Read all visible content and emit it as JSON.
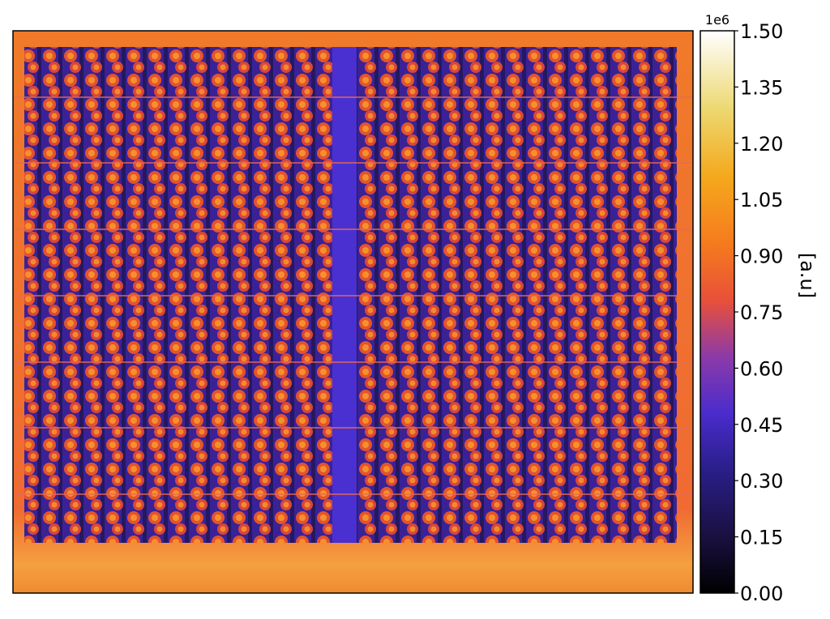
{
  "chart_data": {
    "type": "image",
    "colorbar": {
      "label": "[a.u]",
      "offset_text": "1e6",
      "lim": [
        0,
        1500000
      ],
      "ticks": [
        {
          "value": 0,
          "label": "0.00"
        },
        {
          "value": 150000,
          "label": "0.15"
        },
        {
          "value": 300000,
          "label": "0.30"
        },
        {
          "value": 450000,
          "label": "0.45"
        },
        {
          "value": 600000,
          "label": "0.60"
        },
        {
          "value": 750000,
          "label": "0.75"
        },
        {
          "value": 900000,
          "label": "0.90"
        },
        {
          "value": 1050000,
          "label": "1.05"
        },
        {
          "value": 1200000,
          "label": "1.20"
        },
        {
          "value": 1350000,
          "label": "1.35"
        },
        {
          "value": 1500000,
          "label": "1.50"
        }
      ]
    }
  }
}
